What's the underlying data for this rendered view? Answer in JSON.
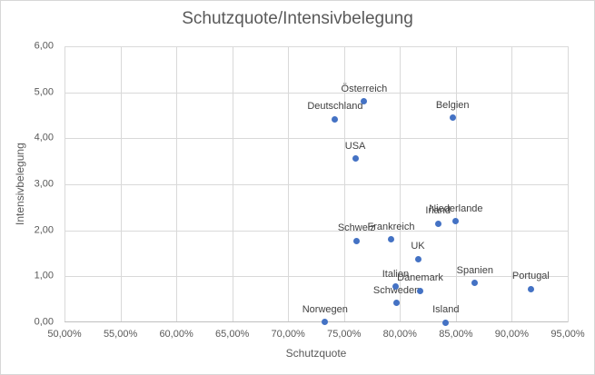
{
  "chart_data": {
    "type": "scatter",
    "title": "Schutzquote/Intensivbelegung",
    "xlabel": "Schutzquote",
    "ylabel": "Intensivbelegung",
    "xlim": [
      50,
      95
    ],
    "ylim": [
      0,
      6
    ],
    "x_ticks": [
      50,
      55,
      60,
      65,
      70,
      75,
      80,
      85,
      90,
      95
    ],
    "x_tick_labels": [
      "50,00%",
      "55,00%",
      "60,00%",
      "65,00%",
      "70,00%",
      "75,00%",
      "80,00%",
      "85,00%",
      "90,00%",
      "95,00%"
    ],
    "y_ticks": [
      0,
      1,
      2,
      3,
      4,
      5,
      6
    ],
    "y_tick_labels": [
      "0,00",
      "1,00",
      "2,00",
      "3,00",
      "4,00",
      "5,00",
      "6,00"
    ],
    "grid": true,
    "legend": false,
    "colors": {
      "marker": "#4472c4",
      "gridline": "#d9d9d9",
      "axis_line": "#bfbfbf",
      "title_text": "#595959",
      "tick_text": "#595959",
      "point_label_text": "#404040"
    },
    "points": [
      {
        "label": "Norwegen",
        "x": 73.3,
        "y": 0.01
      },
      {
        "label": "Deutschland",
        "x": 74.2,
        "y": 4.42
      },
      {
        "label": "USA",
        "x": 76.0,
        "y": 3.56
      },
      {
        "label": "Schweiz",
        "x": 76.1,
        "y": 1.77
      },
      {
        "label": "Österreich",
        "x": 76.8,
        "y": 4.8
      },
      {
        "label": "Frankreich",
        "x": 79.2,
        "y": 1.8
      },
      {
        "label": "Italien",
        "x": 79.6,
        "y": 0.78
      },
      {
        "label": "Schweden",
        "x": 79.7,
        "y": 0.42
      },
      {
        "label": "UK",
        "x": 81.6,
        "y": 1.38
      },
      {
        "label": "Dänemark",
        "x": 81.8,
        "y": 0.69
      },
      {
        "label": "Irland",
        "x": 83.4,
        "y": 2.15
      },
      {
        "label": "Island",
        "x": 84.1,
        "y": 0.0
      },
      {
        "label": "Belgien",
        "x": 84.7,
        "y": 4.45
      },
      {
        "label": "Niederlande",
        "x": 85.0,
        "y": 2.2
      },
      {
        "label": "Spanien",
        "x": 86.7,
        "y": 0.85
      },
      {
        "label": "Portugal",
        "x": 91.7,
        "y": 0.73
      }
    ]
  }
}
